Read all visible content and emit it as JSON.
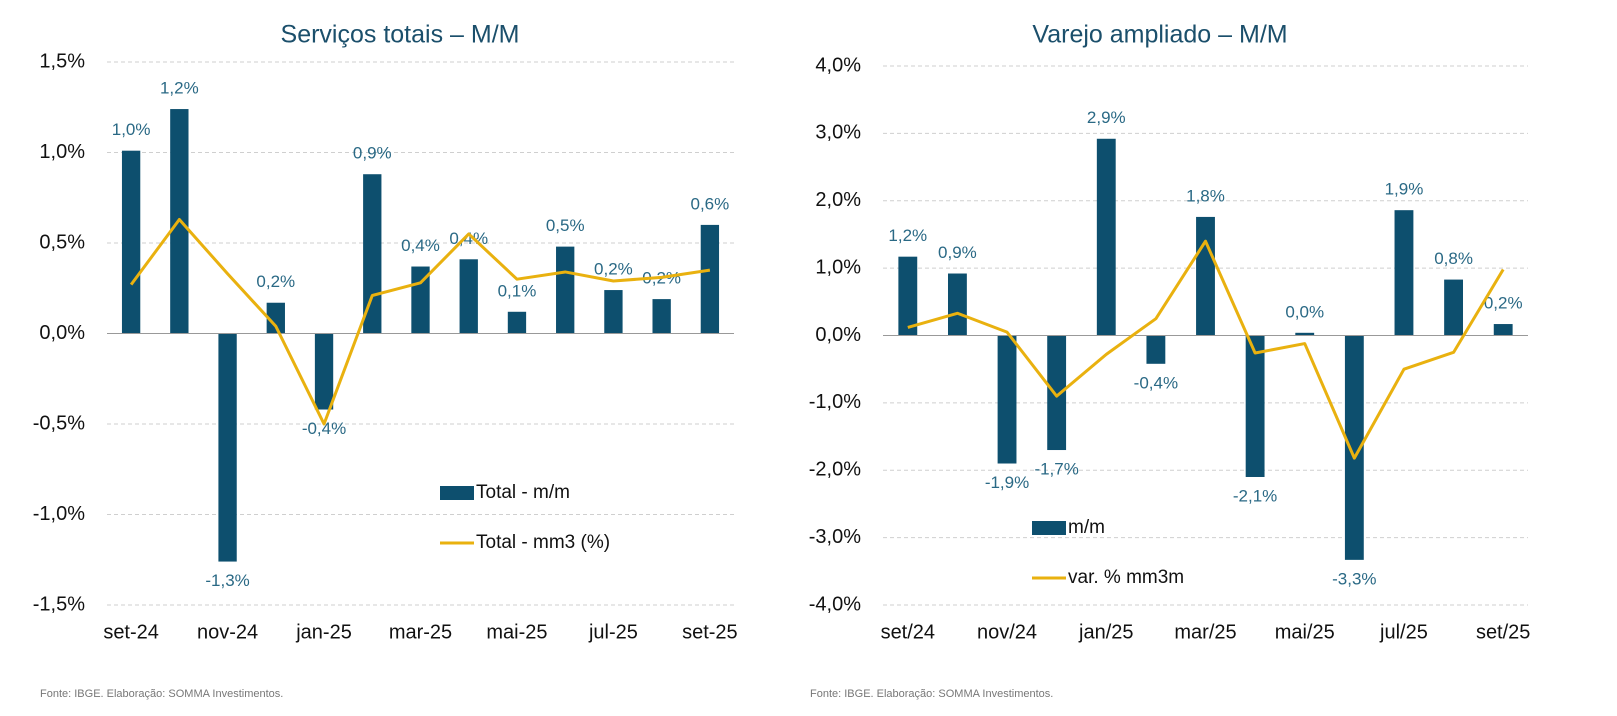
{
  "chart_data": [
    {
      "type": "bar",
      "title": "Serviços totais – M/M",
      "note": "Fonte: IBGE. Elaboração: SOMMA Investimentos.",
      "categories": [
        "set-24",
        null,
        "nov-24",
        null,
        "jan-25",
        null,
        "mar-25",
        null,
        "mai-25",
        null,
        "jul-25",
        null,
        "set-25"
      ],
      "series": [
        {
          "name": "Total - m/m",
          "type": "bar",
          "color": "#0d4f6e",
          "values": [
            1.01,
            1.24,
            -1.26,
            0.17,
            -0.42,
            0.88,
            0.37,
            0.41,
            0.12,
            0.48,
            0.24,
            0.19,
            0.6
          ],
          "value_labels": [
            "1,0%",
            "1,2%",
            "-1,3%",
            "0,2%",
            "-0,4%",
            "0,9%",
            "0,4%",
            "0,4%",
            "0,1%",
            "0,5%",
            "0,2%",
            "0,2%",
            "0,6%"
          ]
        },
        {
          "name": "Total - mm3 (%)",
          "type": "line",
          "color": "#e9b10f",
          "values": [
            0.27,
            0.63,
            0.33,
            0.04,
            -0.5,
            0.21,
            0.28,
            0.55,
            0.3,
            0.34,
            0.29,
            0.31,
            0.35
          ]
        }
      ],
      "ylim": [
        -1.5,
        1.5
      ],
      "yticks": [
        {
          "value": -1.5,
          "label": "-1,5%"
        },
        {
          "value": -1,
          "label": "-1,0%"
        },
        {
          "value": -0.5,
          "label": "-0,5%"
        },
        {
          "value": 0,
          "label": "0,0%"
        },
        {
          "value": 0.5,
          "label": "0,5%"
        },
        {
          "value": 1,
          "label": "1,0%"
        },
        {
          "value": 1.5,
          "label": "1,5%"
        }
      ],
      "grid": true,
      "legend": "lower-right"
    },
    {
      "type": "bar",
      "title": "Varejo ampliado – M/M",
      "note": "Fonte: IBGE. Elaboração: SOMMA Investimentos.",
      "categories": [
        "set/24",
        null,
        "nov/24",
        null,
        "jan/25",
        null,
        "mar/25",
        null,
        "mai/25",
        null,
        "jul/25",
        null,
        "set/25"
      ],
      "series": [
        {
          "name": "m/m",
          "type": "bar",
          "color": "#0d4f6e",
          "values": [
            1.17,
            0.92,
            -1.9,
            -1.7,
            2.92,
            -0.42,
            1.76,
            -2.1,
            0.04,
            -3.33,
            1.86,
            0.83,
            0.17
          ],
          "value_labels": [
            "1,2%",
            "0,9%",
            "-1,9%",
            "-1,7%",
            "2,9%",
            "-0,4%",
            "1,8%",
            "-2,1%",
            "0,0%",
            "-3,3%",
            "1,9%",
            "0,8%",
            "0,2%"
          ]
        },
        {
          "name": "var. % mm3m",
          "type": "line",
          "color": "#e9b10f",
          "values": [
            0.12,
            0.33,
            0.05,
            -0.9,
            -0.28,
            0.25,
            1.4,
            -0.26,
            -0.12,
            -1.82,
            -0.5,
            -0.25,
            0.98
          ]
        }
      ],
      "ylim": [
        -4,
        4
      ],
      "yticks": [
        {
          "value": -4,
          "label": "-4,0%"
        },
        {
          "value": -3,
          "label": "-3,0%"
        },
        {
          "value": -2,
          "label": "-2,0%"
        },
        {
          "value": -1,
          "label": "-1,0%"
        },
        {
          "value": 0,
          "label": "0,0%"
        },
        {
          "value": 1,
          "label": "1,0%"
        },
        {
          "value": 2,
          "label": "2,0%"
        },
        {
          "value": 3,
          "label": "3,0%"
        },
        {
          "value": 4,
          "label": "4,0%"
        }
      ],
      "grid": true,
      "legend": "lower-left"
    }
  ]
}
